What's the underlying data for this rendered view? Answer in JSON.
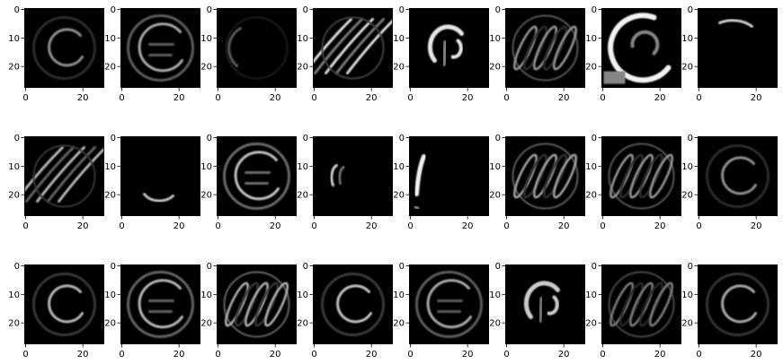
{
  "figure": {
    "rows": 3,
    "cols": 8,
    "colormap": "gray",
    "background_color": "#000000",
    "axes_color": "#000000",
    "x_ticks": [
      "0",
      "20"
    ],
    "y_ticks": [
      "0",
      "10",
      "20"
    ],
    "x_tick_values": [
      0,
      20
    ],
    "y_tick_values": [
      0,
      10,
      20
    ],
    "image_extent": [
      0,
      28
    ]
  },
  "panels": [
    {
      "id": "r1c1",
      "pattern": "ring-inner-c",
      "brightness": 0.55
    },
    {
      "id": "r1c2",
      "pattern": "double-ring",
      "brightness": 0.65
    },
    {
      "id": "r1c3",
      "pattern": "faint-ring",
      "brightness": 0.35
    },
    {
      "id": "r1c4",
      "pattern": "diagonal-arcs",
      "brightness": 0.85
    },
    {
      "id": "r1c5",
      "pattern": "center-blob",
      "brightness": 0.9
    },
    {
      "id": "r1c6",
      "pattern": "slanted-ovals",
      "brightness": 0.6
    },
    {
      "id": "r1c7",
      "pattern": "bright-left-ring",
      "brightness": 0.95
    },
    {
      "id": "r1c8",
      "pattern": "top-arc",
      "brightness": 0.8
    },
    {
      "id": "r2c1",
      "pattern": "diagonal-arcs",
      "brightness": 0.7
    },
    {
      "id": "r2c2",
      "pattern": "bottom-arc",
      "brightness": 0.75
    },
    {
      "id": "r2c3",
      "pattern": "double-ring",
      "brightness": 0.75
    },
    {
      "id": "r2c4",
      "pattern": "left-small-arcs",
      "brightness": 0.8
    },
    {
      "id": "r2c5",
      "pattern": "left-stroke",
      "brightness": 0.95
    },
    {
      "id": "r2c6",
      "pattern": "slanted-ovals",
      "brightness": 0.65
    },
    {
      "id": "r2c7",
      "pattern": "slanted-ovals",
      "brightness": 0.6
    },
    {
      "id": "r2c8",
      "pattern": "ring-inner-c",
      "brightness": 0.55
    },
    {
      "id": "r3c1",
      "pattern": "ring-inner-c",
      "brightness": 0.7
    },
    {
      "id": "r3c2",
      "pattern": "double-ring",
      "brightness": 0.7
    },
    {
      "id": "r3c3",
      "pattern": "slanted-ovals",
      "brightness": 0.7
    },
    {
      "id": "r3c4",
      "pattern": "ring-inner-c",
      "brightness": 0.75
    },
    {
      "id": "r3c5",
      "pattern": "double-ring",
      "brightness": 0.65
    },
    {
      "id": "r3c6",
      "pattern": "center-blob",
      "brightness": 0.8
    },
    {
      "id": "r3c7",
      "pattern": "slanted-ovals",
      "brightness": 0.5
    },
    {
      "id": "r3c8",
      "pattern": "ring-inner-c",
      "brightness": 0.65
    }
  ]
}
